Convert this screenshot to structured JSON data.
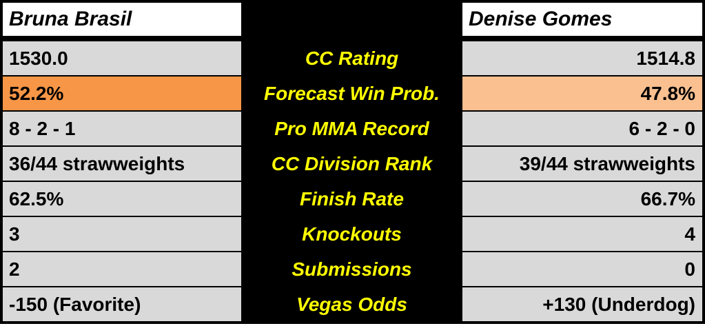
{
  "fighters": {
    "left": {
      "name": "Bruna Brasil"
    },
    "right": {
      "name": "Denise Gomes"
    }
  },
  "rows": [
    {
      "label": "CC Rating",
      "left": "1530.0",
      "right": "1514.8",
      "highlight": false
    },
    {
      "label": "Forecast Win Prob.",
      "left": "52.2%",
      "right": "47.8%",
      "highlight": true
    },
    {
      "label": "Pro MMA Record",
      "left": "8 - 2 - 1",
      "right": "6 - 2 - 0",
      "highlight": false
    },
    {
      "label": "CC Division Rank",
      "left": "36/44 strawweights",
      "right": "39/44 strawweights",
      "highlight": false
    },
    {
      "label": "Finish Rate",
      "left": "62.5%",
      "right": "66.7%",
      "highlight": false
    },
    {
      "label": "Knockouts",
      "left": "3",
      "right": "4",
      "highlight": false
    },
    {
      "label": "Submissions",
      "left": "2",
      "right": "0",
      "highlight": false
    },
    {
      "label": "Vegas Odds",
      "left": "-150 (Favorite)",
      "right": "+130 (Underdog)",
      "highlight": false
    }
  ],
  "colors": {
    "table_border": "#000000",
    "header_bg": "#ffffff",
    "row_bg": "#d9d9d9",
    "highlight_left": "#f79646",
    "highlight_right": "#fac090",
    "label_color": "#ffff00"
  }
}
